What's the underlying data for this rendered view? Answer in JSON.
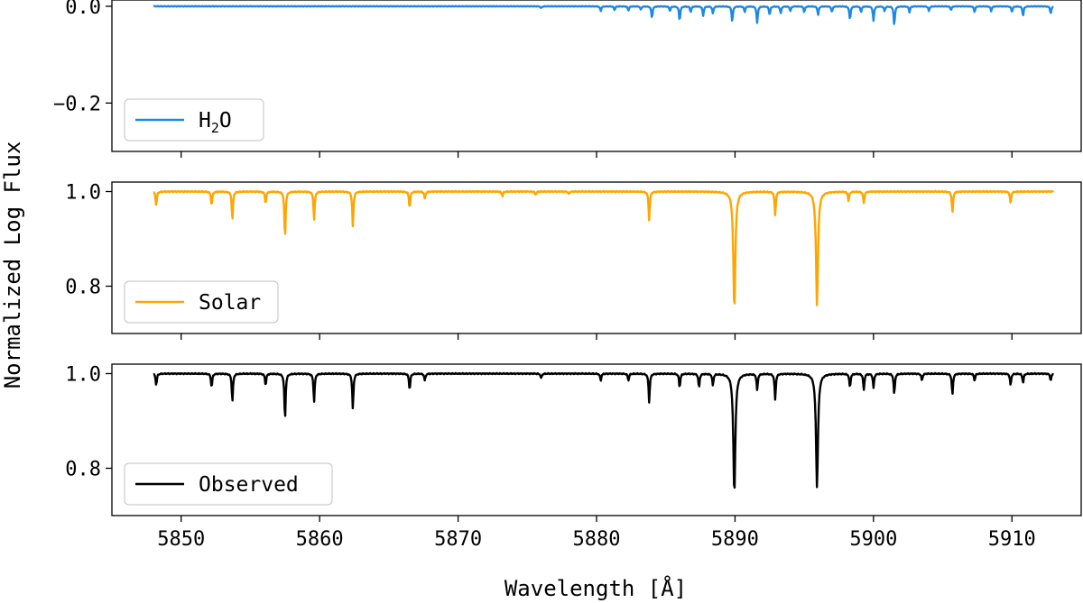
{
  "chart_data": {
    "type": "line",
    "layout": "3 vertically stacked panels sharing the x axis",
    "xlabel": "Wavelength [Å]",
    "ylabel": "Normalized Log Flux",
    "xlim": [
      5845,
      5915
    ],
    "xticks": [
      5850,
      5860,
      5870,
      5880,
      5890,
      5900,
      5910
    ],
    "x_range": [
      5848,
      5913
    ],
    "grid": false,
    "panels": [
      {
        "series_name": "H2O",
        "legend_main": "H",
        "legend_sub": "2",
        "legend_tail": "O",
        "legend_position": "lower-left",
        "color": "#1e88e5",
        "ylim": [
          -0.3,
          0.013
        ],
        "yticks": [
          0.0,
          -0.2
        ],
        "ytick_labels": [
          "0.0",
          "−0.2"
        ],
        "continuum": 0.0,
        "lines": [
          [
            5876.0,
            -0.004
          ],
          [
            5880.3,
            -0.01
          ],
          [
            5881.3,
            -0.008
          ],
          [
            5882.3,
            -0.009
          ],
          [
            5883.2,
            -0.007
          ],
          [
            5884.0,
            -0.025
          ],
          [
            5885.3,
            -0.01
          ],
          [
            5886.0,
            -0.03
          ],
          [
            5886.8,
            -0.012
          ],
          [
            5887.7,
            -0.02
          ],
          [
            5888.4,
            -0.015
          ],
          [
            5889.8,
            -0.032
          ],
          [
            5890.7,
            -0.012
          ],
          [
            5891.6,
            -0.035
          ],
          [
            5892.5,
            -0.018
          ],
          [
            5893.3,
            -0.015
          ],
          [
            5894.0,
            -0.01
          ],
          [
            5895.0,
            -0.012
          ],
          [
            5896.0,
            -0.018
          ],
          [
            5897.0,
            -0.012
          ],
          [
            5898.3,
            -0.028
          ],
          [
            5899.1,
            -0.012
          ],
          [
            5900.0,
            -0.03
          ],
          [
            5900.8,
            -0.01
          ],
          [
            5901.5,
            -0.04
          ],
          [
            5902.6,
            -0.012
          ],
          [
            5904.0,
            -0.01
          ],
          [
            5905.6,
            -0.008
          ],
          [
            5907.3,
            -0.012
          ],
          [
            5908.5,
            -0.01
          ],
          [
            5910.0,
            -0.012
          ],
          [
            5910.8,
            -0.02
          ],
          [
            5912.8,
            -0.015
          ]
        ]
      },
      {
        "series_name": "Solar",
        "legend_label": "Solar",
        "legend_position": "lower-left",
        "color": "#ffa500",
        "ylim": [
          0.7,
          1.02
        ],
        "yticks": [
          1.0,
          0.8
        ],
        "ytick_labels": [
          "1.0",
          "0.8"
        ],
        "continuum": 1.0,
        "lines": [
          [
            5848.2,
            0.97
          ],
          [
            5852.2,
            0.97
          ],
          [
            5853.7,
            0.94
          ],
          [
            5856.1,
            0.975
          ],
          [
            5857.5,
            0.9
          ],
          [
            5859.6,
            0.94
          ],
          [
            5862.4,
            0.925
          ],
          [
            5866.5,
            0.965
          ],
          [
            5867.6,
            0.985
          ],
          [
            5873.2,
            0.99
          ],
          [
            5875.6,
            0.993
          ],
          [
            5878.0,
            0.995
          ],
          [
            5883.8,
            0.94
          ],
          [
            5889.95,
            0.75
          ],
          [
            5892.9,
            0.95
          ],
          [
            5895.92,
            0.76
          ],
          [
            5898.2,
            0.98
          ],
          [
            5899.3,
            0.975
          ],
          [
            5905.7,
            0.955
          ],
          [
            5909.9,
            0.975
          ]
        ]
      },
      {
        "series_name": "Observed",
        "legend_label": "Observed",
        "legend_position": "lower-left",
        "color": "#000000",
        "ylim": [
          0.7,
          1.02
        ],
        "yticks": [
          1.0,
          0.8
        ],
        "ytick_labels": [
          "1.0",
          "0.8"
        ],
        "continuum": 1.0,
        "lines": [
          [
            5848.2,
            0.975
          ],
          [
            5852.2,
            0.97
          ],
          [
            5853.7,
            0.94
          ],
          [
            5856.1,
            0.975
          ],
          [
            5857.5,
            0.9
          ],
          [
            5859.6,
            0.94
          ],
          [
            5862.4,
            0.925
          ],
          [
            5866.5,
            0.965
          ],
          [
            5867.6,
            0.985
          ],
          [
            5876.0,
            0.99
          ],
          [
            5880.3,
            0.985
          ],
          [
            5882.3,
            0.985
          ],
          [
            5883.8,
            0.94
          ],
          [
            5886.0,
            0.97
          ],
          [
            5887.4,
            0.97
          ],
          [
            5888.4,
            0.975
          ],
          [
            5889.95,
            0.745
          ],
          [
            5891.6,
            0.965
          ],
          [
            5892.9,
            0.945
          ],
          [
            5895.92,
            0.76
          ],
          [
            5898.3,
            0.97
          ],
          [
            5899.3,
            0.965
          ],
          [
            5900.0,
            0.97
          ],
          [
            5901.5,
            0.955
          ],
          [
            5903.5,
            0.985
          ],
          [
            5905.7,
            0.955
          ],
          [
            5907.3,
            0.985
          ],
          [
            5909.9,
            0.975
          ],
          [
            5910.8,
            0.98
          ],
          [
            5912.8,
            0.985
          ]
        ]
      }
    ]
  }
}
